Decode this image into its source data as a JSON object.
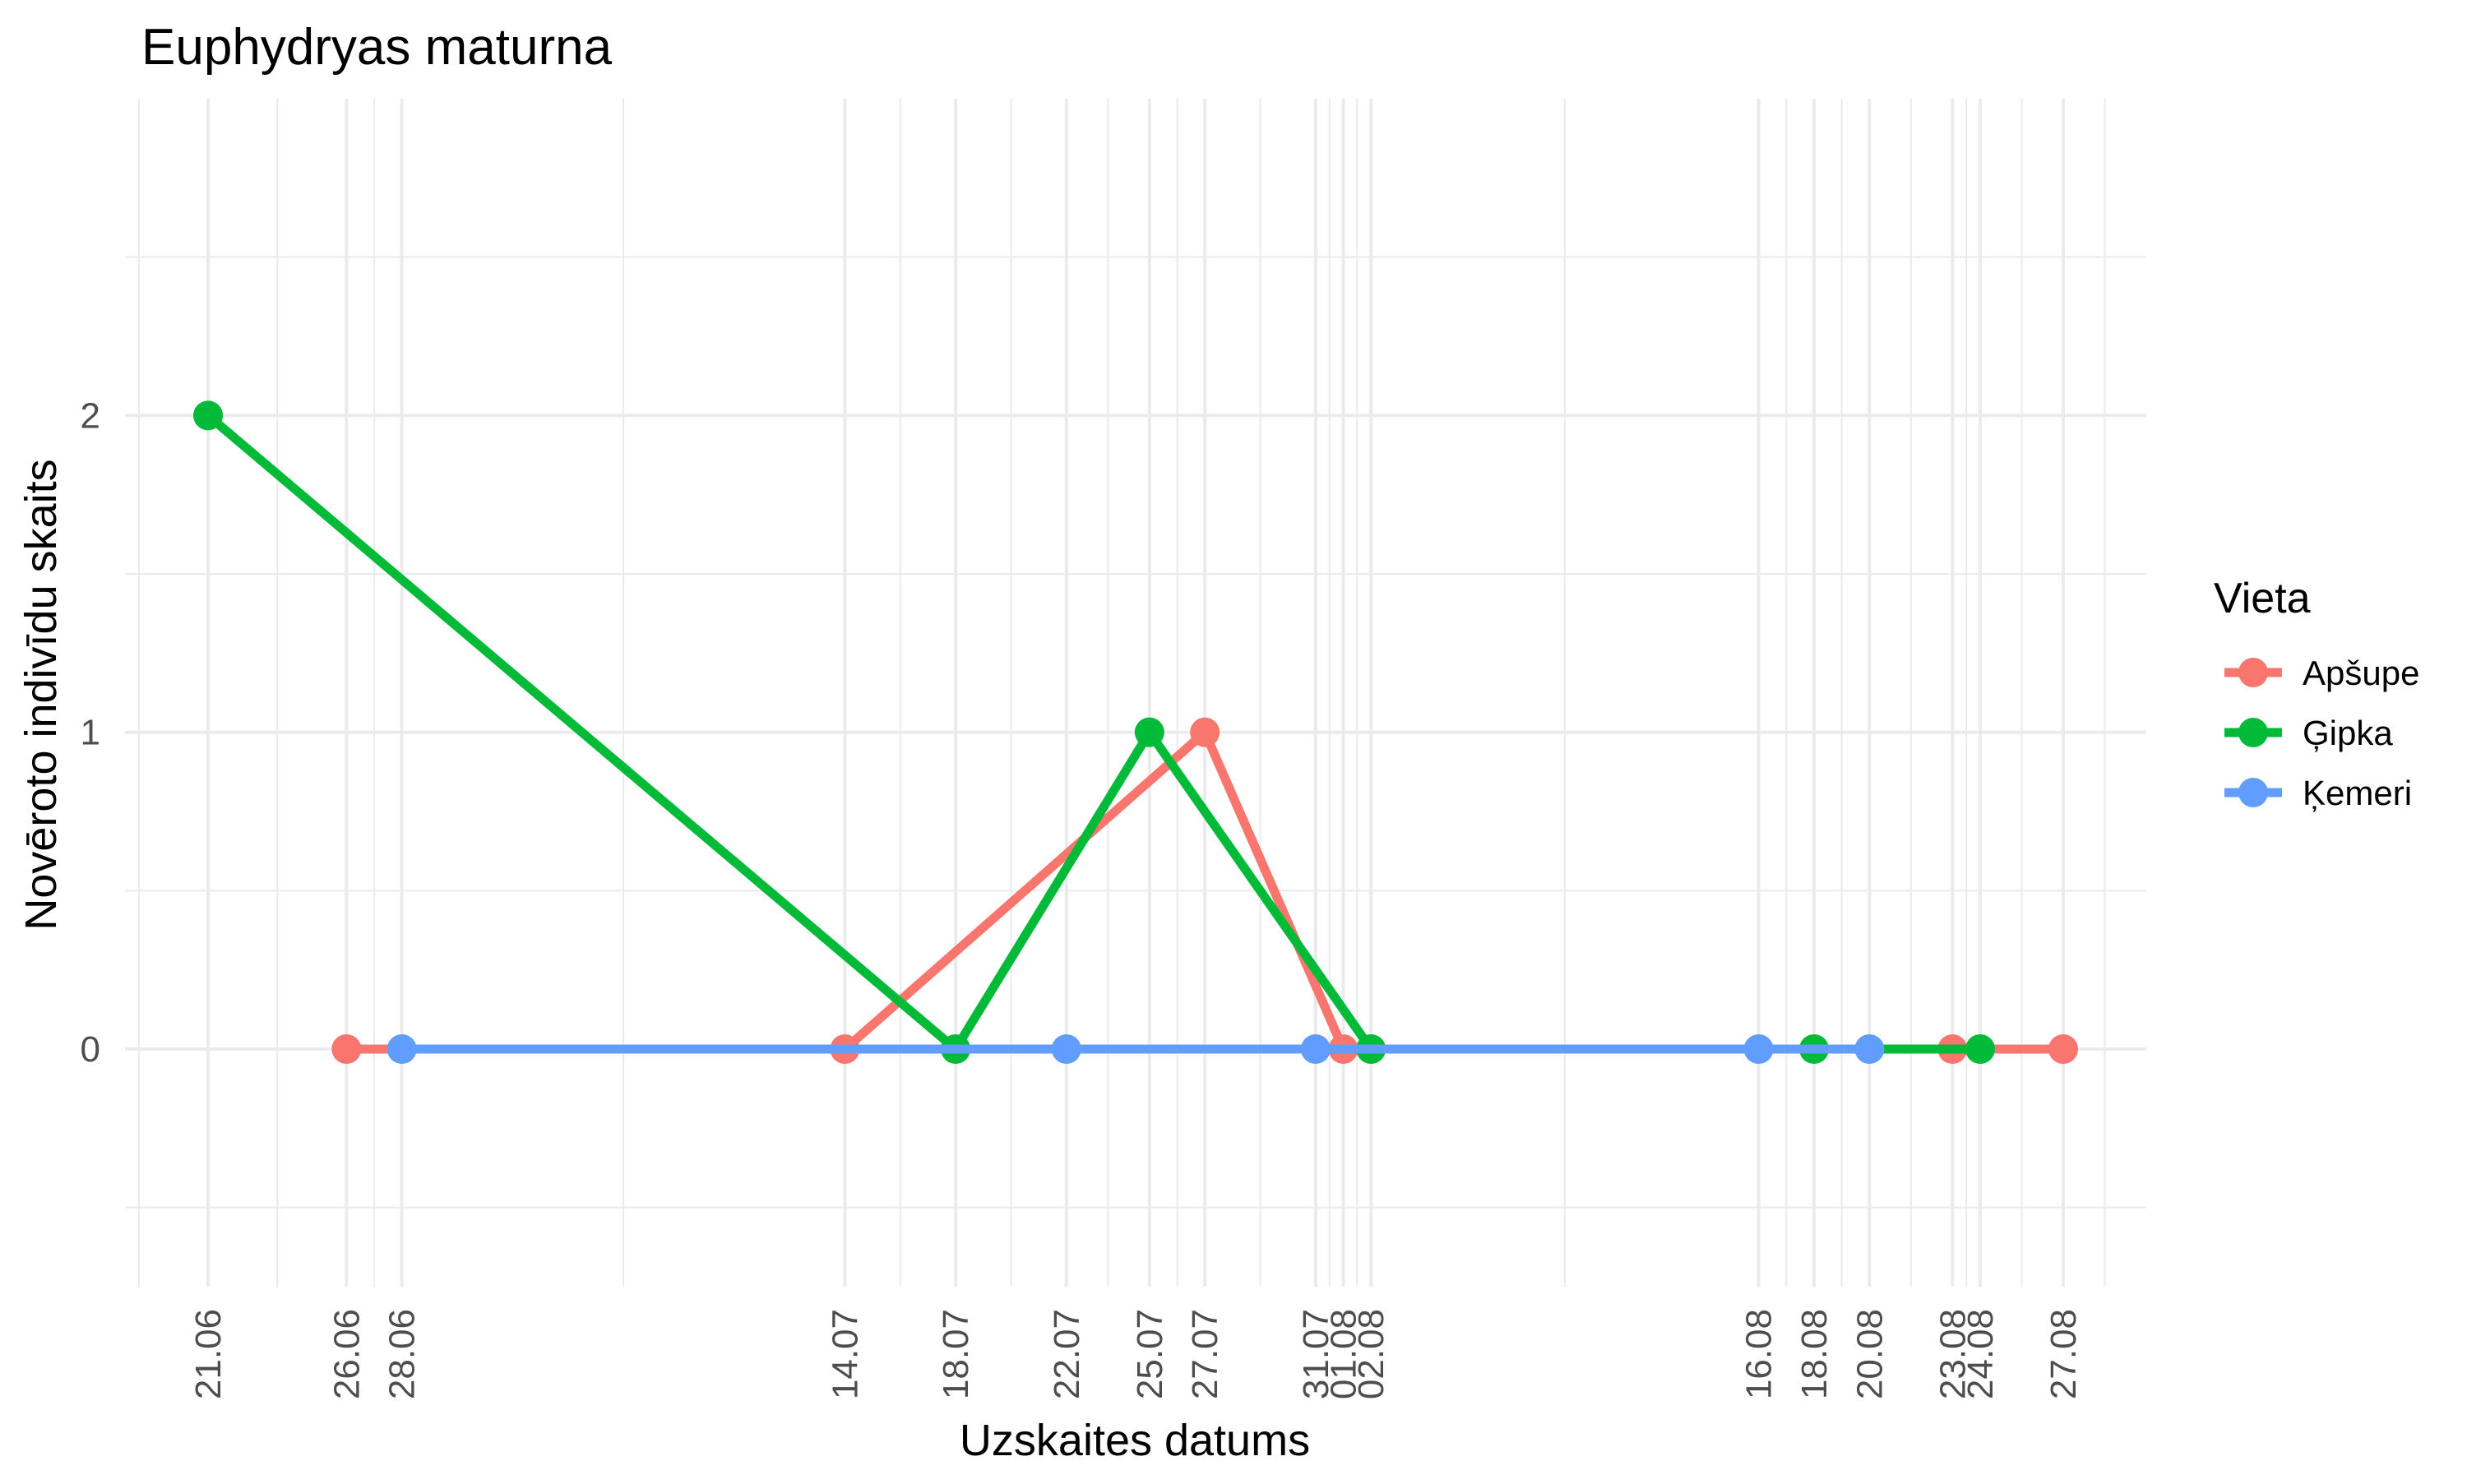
{
  "chart_data": {
    "type": "line",
    "title": "Euphydryas maturna",
    "xlabel": "Uzskaites datums",
    "ylabel": "Novēroto indivīdu skaits",
    "x_ticks": [
      "21.06",
      "26.06",
      "28.06",
      "14.07",
      "18.07",
      "22.07",
      "25.07",
      "27.07",
      "31.07",
      "01.08",
      "02.08",
      "16.08",
      "18.08",
      "20.08",
      "23.08",
      "24.08",
      "27.08"
    ],
    "y_ticks": [
      0,
      1,
      2
    ],
    "ylim": [
      -0.75,
      3.0
    ],
    "xlim": [
      "18.06",
      "30.08"
    ],
    "grid": true,
    "legend": {
      "title": "Vieta",
      "position": "right"
    },
    "series": [
      {
        "name": "Apšupe",
        "color": "#F8766D",
        "x": [
          "26.06",
          "14.07",
          "27.07",
          "01.08",
          "23.08",
          "27.08"
        ],
        "values": [
          0,
          0,
          1,
          0,
          0,
          0
        ]
      },
      {
        "name": "Ģipka",
        "color": "#00BA38",
        "x": [
          "21.06",
          "18.07",
          "25.07",
          "02.08",
          "18.08",
          "24.08"
        ],
        "values": [
          2,
          0,
          1,
          0,
          0,
          0
        ]
      },
      {
        "name": "Ķemeri",
        "color": "#619CFF",
        "x": [
          "28.06",
          "22.07",
          "31.07",
          "16.08",
          "20.08"
        ],
        "values": [
          0,
          0,
          0,
          0,
          0
        ]
      }
    ]
  }
}
